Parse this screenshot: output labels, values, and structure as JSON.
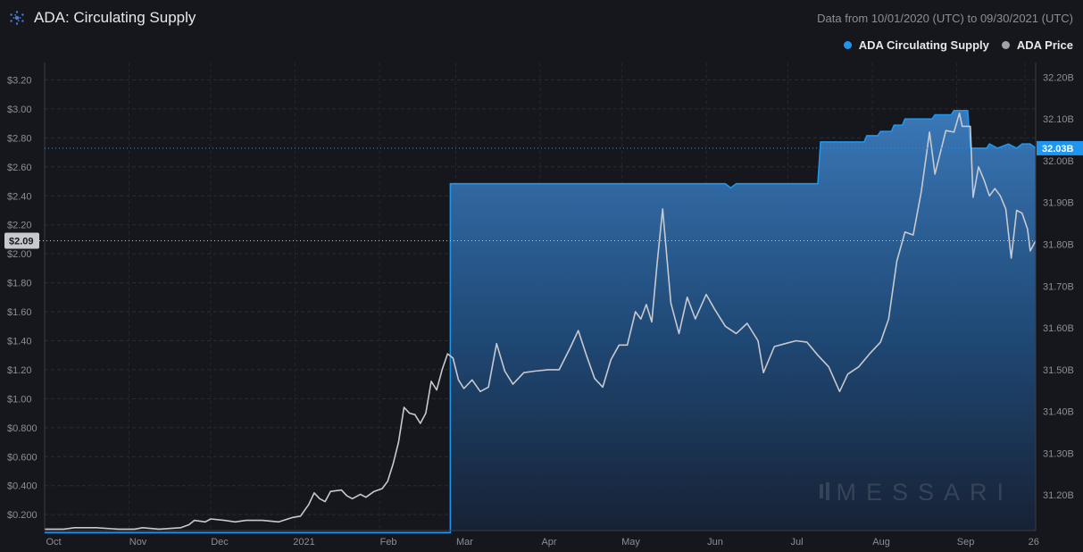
{
  "header": {
    "title": "ADA: Circulating Supply",
    "date_range": "Data from 10/01/2020 (UTC) to 09/30/2021 (UTC)"
  },
  "legend": [
    {
      "label": "ADA Circulating Supply",
      "color": "#1e96f0"
    },
    {
      "label": "ADA Price",
      "color": "#c8c9cf"
    }
  ],
  "watermark": "MESSARI",
  "chart_data": {
    "type": "line",
    "x_tick_labels": [
      "Oct",
      "Nov",
      "Dec",
      "2021",
      "Feb",
      "Mar",
      "Apr",
      "May",
      "Jun",
      "Jul",
      "Aug",
      "Sep",
      "26"
    ],
    "x_tick_dates": [
      "2020-10-01",
      "2020-11-01",
      "2020-12-01",
      "2021-01-01",
      "2021-02-01",
      "2021-03-01",
      "2021-04-01",
      "2021-05-01",
      "2021-06-01",
      "2021-07-01",
      "2021-08-01",
      "2021-09-01",
      "2021-09-26"
    ],
    "x_range": [
      "2020-10-01",
      "2021-09-30"
    ],
    "left_axis": {
      "series": "ADA Price",
      "ticks": [
        0.2,
        0.4,
        0.6,
        0.8,
        1.0,
        1.2,
        1.4,
        1.6,
        1.8,
        2.0,
        2.2,
        2.4,
        2.6,
        2.8,
        3.0,
        3.2
      ],
      "tick_labels": [
        "$0.200",
        "$0.400",
        "$0.600",
        "$0.800",
        "$1.00",
        "$1.20",
        "$1.40",
        "$1.60",
        "$1.80",
        "$2.00",
        "$2.20",
        "$2.40",
        "$2.60",
        "$2.80",
        "$3.00",
        "$3.20"
      ],
      "range": [
        0.09,
        3.32
      ]
    },
    "right_axis": {
      "series": "ADA Circulating Supply",
      "ticks": [
        31.2,
        31.3,
        31.4,
        31.5,
        31.6,
        31.7,
        31.8,
        31.9,
        32.0,
        32.1,
        32.2
      ],
      "tick_labels": [
        "31.20B",
        "31.30B",
        "31.40B",
        "31.50B",
        "31.60B",
        "31.70B",
        "31.80B",
        "31.90B",
        "32.00B",
        "32.10B",
        "32.20B"
      ],
      "range": [
        31.115,
        32.235
      ]
    },
    "current_price_label": "$2.09",
    "current_price": 2.09,
    "current_supply_label": "32.03B",
    "current_supply": 32.03,
    "series": [
      {
        "name": "ADA Circulating Supply",
        "color": "#1e96f0",
        "points": [
          [
            "2020-10-01",
            31.11
          ],
          [
            "2021-02-27",
            31.11
          ],
          [
            "2021-02-27",
            31.945
          ],
          [
            "2021-06-08",
            31.945
          ],
          [
            "2021-06-10",
            31.935
          ],
          [
            "2021-06-12",
            31.945
          ],
          [
            "2021-07-12",
            31.945
          ],
          [
            "2021-07-13",
            32.045
          ],
          [
            "2021-07-29",
            32.045
          ],
          [
            "2021-07-30",
            32.06
          ],
          [
            "2021-08-03",
            32.06
          ],
          [
            "2021-08-04",
            32.07
          ],
          [
            "2021-08-08",
            32.07
          ],
          [
            "2021-08-09",
            32.085
          ],
          [
            "2021-08-12",
            32.085
          ],
          [
            "2021-08-13",
            32.1
          ],
          [
            "2021-08-23",
            32.1
          ],
          [
            "2021-08-24",
            32.11
          ],
          [
            "2021-08-30",
            32.11
          ],
          [
            "2021-08-31",
            32.12
          ],
          [
            "2021-09-05",
            32.12
          ],
          [
            "2021-09-06",
            32.03
          ],
          [
            "2021-09-12",
            32.03
          ],
          [
            "2021-09-13",
            32.04
          ],
          [
            "2021-09-16",
            32.03
          ],
          [
            "2021-09-20",
            32.04
          ],
          [
            "2021-09-23",
            32.03
          ],
          [
            "2021-09-25",
            32.04
          ],
          [
            "2021-09-28",
            32.04
          ],
          [
            "2021-09-30",
            32.03
          ]
        ]
      },
      {
        "name": "ADA Price",
        "color": "#c8c9cf",
        "points": [
          [
            "2020-10-01",
            0.1
          ],
          [
            "2020-10-08",
            0.1
          ],
          [
            "2020-10-12",
            0.11
          ],
          [
            "2020-10-20",
            0.11
          ],
          [
            "2020-10-28",
            0.1
          ],
          [
            "2020-11-03",
            0.1
          ],
          [
            "2020-11-06",
            0.11
          ],
          [
            "2020-11-12",
            0.1
          ],
          [
            "2020-11-20",
            0.11
          ],
          [
            "2020-11-23",
            0.13
          ],
          [
            "2020-11-25",
            0.16
          ],
          [
            "2020-11-29",
            0.15
          ],
          [
            "2020-12-01",
            0.17
          ],
          [
            "2020-12-06",
            0.16
          ],
          [
            "2020-12-10",
            0.15
          ],
          [
            "2020-12-14",
            0.16
          ],
          [
            "2020-12-20",
            0.16
          ],
          [
            "2020-12-26",
            0.15
          ],
          [
            "2020-12-31",
            0.18
          ],
          [
            "2021-01-03",
            0.19
          ],
          [
            "2021-01-06",
            0.27
          ],
          [
            "2021-01-08",
            0.35
          ],
          [
            "2021-01-10",
            0.31
          ],
          [
            "2021-01-12",
            0.29
          ],
          [
            "2021-01-14",
            0.36
          ],
          [
            "2021-01-18",
            0.37
          ],
          [
            "2021-01-20",
            0.33
          ],
          [
            "2021-01-22",
            0.31
          ],
          [
            "2021-01-25",
            0.34
          ],
          [
            "2021-01-27",
            0.32
          ],
          [
            "2021-01-30",
            0.36
          ],
          [
            "2021-02-02",
            0.38
          ],
          [
            "2021-02-04",
            0.43
          ],
          [
            "2021-02-06",
            0.55
          ],
          [
            "2021-02-08",
            0.7
          ],
          [
            "2021-02-10",
            0.94
          ],
          [
            "2021-02-12",
            0.9
          ],
          [
            "2021-02-14",
            0.89
          ],
          [
            "2021-02-16",
            0.83
          ],
          [
            "2021-02-18",
            0.9
          ],
          [
            "2021-02-20",
            1.12
          ],
          [
            "2021-02-22",
            1.06
          ],
          [
            "2021-02-24",
            1.2
          ],
          [
            "2021-02-26",
            1.31
          ],
          [
            "2021-02-28",
            1.28
          ],
          [
            "2021-03-02",
            1.13
          ],
          [
            "2021-03-04",
            1.07
          ],
          [
            "2021-03-07",
            1.13
          ],
          [
            "2021-03-10",
            1.05
          ],
          [
            "2021-03-13",
            1.08
          ],
          [
            "2021-03-16",
            1.38
          ],
          [
            "2021-03-19",
            1.19
          ],
          [
            "2021-03-22",
            1.1
          ],
          [
            "2021-03-26",
            1.18
          ],
          [
            "2021-03-30",
            1.19
          ],
          [
            "2021-04-04",
            1.2
          ],
          [
            "2021-04-08",
            1.2
          ],
          [
            "2021-04-12",
            1.35
          ],
          [
            "2021-04-15",
            1.47
          ],
          [
            "2021-04-18",
            1.3
          ],
          [
            "2021-04-21",
            1.14
          ],
          [
            "2021-04-24",
            1.08
          ],
          [
            "2021-04-27",
            1.27
          ],
          [
            "2021-04-30",
            1.37
          ],
          [
            "2021-05-03",
            1.37
          ],
          [
            "2021-05-06",
            1.6
          ],
          [
            "2021-05-08",
            1.55
          ],
          [
            "2021-05-10",
            1.65
          ],
          [
            "2021-05-12",
            1.53
          ],
          [
            "2021-05-14",
            1.94
          ],
          [
            "2021-05-16",
            2.31
          ],
          [
            "2021-05-19",
            1.66
          ],
          [
            "2021-05-22",
            1.45
          ],
          [
            "2021-05-25",
            1.7
          ],
          [
            "2021-05-28",
            1.55
          ],
          [
            "2021-06-01",
            1.72
          ],
          [
            "2021-06-04",
            1.62
          ],
          [
            "2021-06-08",
            1.5
          ],
          [
            "2021-06-12",
            1.45
          ],
          [
            "2021-06-16",
            1.52
          ],
          [
            "2021-06-20",
            1.4
          ],
          [
            "2021-06-22",
            1.18
          ],
          [
            "2021-06-26",
            1.36
          ],
          [
            "2021-06-30",
            1.38
          ],
          [
            "2021-07-04",
            1.4
          ],
          [
            "2021-07-08",
            1.39
          ],
          [
            "2021-07-12",
            1.3
          ],
          [
            "2021-07-16",
            1.22
          ],
          [
            "2021-07-20",
            1.05
          ],
          [
            "2021-07-23",
            1.17
          ],
          [
            "2021-07-27",
            1.22
          ],
          [
            "2021-07-31",
            1.31
          ],
          [
            "2021-08-04",
            1.39
          ],
          [
            "2021-08-07",
            1.55
          ],
          [
            "2021-08-10",
            1.95
          ],
          [
            "2021-08-13",
            2.15
          ],
          [
            "2021-08-16",
            2.13
          ],
          [
            "2021-08-19",
            2.43
          ],
          [
            "2021-08-22",
            2.84
          ],
          [
            "2021-08-24",
            2.55
          ],
          [
            "2021-08-26",
            2.7
          ],
          [
            "2021-08-28",
            2.85
          ],
          [
            "2021-08-31",
            2.84
          ],
          [
            "2021-09-02",
            2.97
          ],
          [
            "2021-09-03",
            2.88
          ],
          [
            "2021-09-06",
            2.88
          ],
          [
            "2021-09-07",
            2.39
          ],
          [
            "2021-09-09",
            2.6
          ],
          [
            "2021-09-11",
            2.51
          ],
          [
            "2021-09-13",
            2.4
          ],
          [
            "2021-09-15",
            2.45
          ],
          [
            "2021-09-17",
            2.4
          ],
          [
            "2021-09-19",
            2.31
          ],
          [
            "2021-09-21",
            1.97
          ],
          [
            "2021-09-23",
            2.3
          ],
          [
            "2021-09-25",
            2.28
          ],
          [
            "2021-09-27",
            2.17
          ],
          [
            "2021-09-28",
            2.02
          ],
          [
            "2021-09-30",
            2.09
          ]
        ]
      }
    ]
  }
}
